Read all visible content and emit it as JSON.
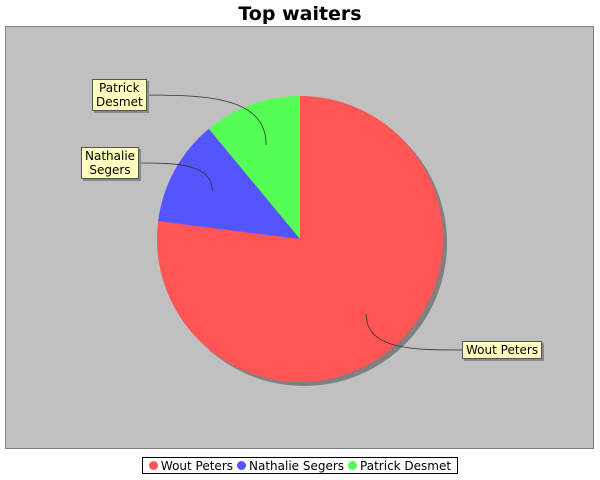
{
  "chart_data": {
    "type": "pie",
    "title": "Top waiters",
    "legend_position": "bottom",
    "slices": [
      {
        "label": "Wout Peters",
        "callout": [
          "Wout Peters"
        ],
        "value": 77,
        "color": "#ff5555"
      },
      {
        "label": "Nathalie Segers",
        "callout": [
          "Nathalie",
          "Segers"
        ],
        "value": 12,
        "color": "#5555ff"
      },
      {
        "label": "Patrick Desmet",
        "callout": [
          "Patrick",
          "Desmet"
        ],
        "value": 11,
        "color": "#55ff55"
      }
    ]
  },
  "colors": {
    "plot_background": "#c0c0c0",
    "label_background": "#ffffc0"
  }
}
